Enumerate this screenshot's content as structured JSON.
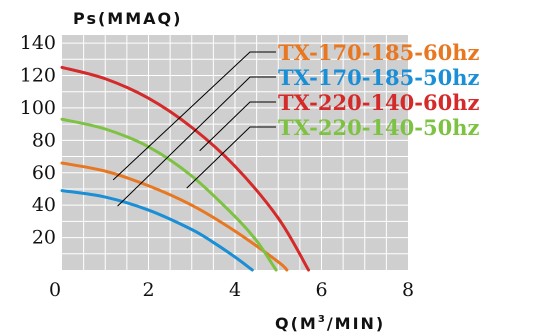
{
  "chart_data": {
    "type": "line",
    "ylabel": "Ps(MMAQ)",
    "xlabel_main": "Q(M",
    "xlabel_sup": "3",
    "xlabel_tail": "/MIN)",
    "xlim": [
      0,
      8
    ],
    "ylim": [
      0,
      145
    ],
    "x_ticks": [
      "0",
      "2",
      "4",
      "6",
      "8"
    ],
    "x_tick_values": [
      0,
      2,
      4,
      6,
      8
    ],
    "y_ticks": [
      "20",
      "40",
      "60",
      "80",
      "100",
      "120",
      "140"
    ],
    "y_tick_values": [
      20,
      40,
      60,
      80,
      100,
      120,
      140
    ],
    "grid": true,
    "legend_position": "right",
    "series": [
      {
        "name": "TX-170-185-60hz",
        "color": "#e87722",
        "x": [
          0,
          1,
          2,
          3,
          4,
          5,
          5.2
        ],
        "y": [
          66,
          61,
          52,
          40,
          24,
          5,
          0
        ]
      },
      {
        "name": "TX-170-185-50hz",
        "color": "#1a8fd6",
        "x": [
          0,
          1,
          2,
          3,
          3.5,
          4,
          4.4
        ],
        "y": [
          49,
          45,
          37,
          25,
          17,
          8,
          0
        ]
      },
      {
        "name": "TX-220-140-60hz",
        "color": "#d42a2a",
        "x": [
          0,
          1,
          2,
          3,
          4,
          5,
          5.7
        ],
        "y": [
          125,
          118,
          106,
          88,
          64,
          32,
          0
        ]
      },
      {
        "name": "TX-220-140-50hz",
        "color": "#7dc242",
        "x": [
          0,
          1,
          2,
          3,
          4,
          4.5,
          4.95
        ],
        "y": [
          93,
          87,
          76,
          58,
          33,
          18,
          0
        ]
      }
    ]
  }
}
